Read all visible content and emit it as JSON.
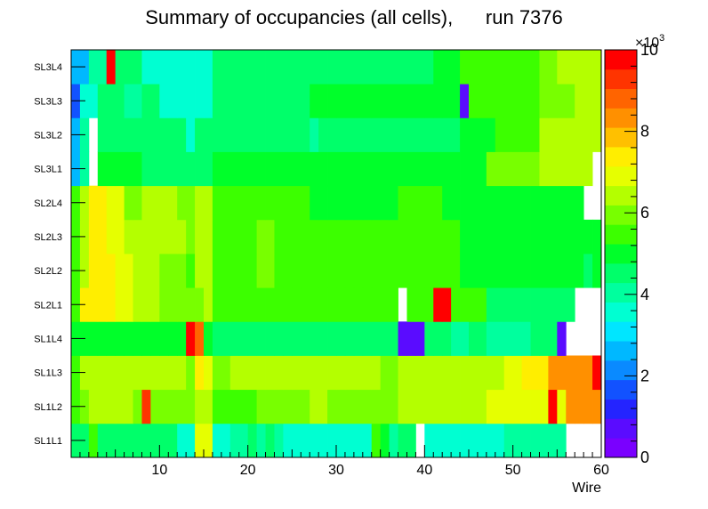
{
  "chart_data": {
    "type": "heatmap",
    "title": "Summary of occupancies (all cells),      run 7376",
    "xlabel": "Wire",
    "ylabel": "",
    "xlim": [
      0,
      60
    ],
    "x_ticks": [
      10,
      20,
      30,
      40,
      50,
      60
    ],
    "rows": [
      "SL1L1",
      "SL1L2",
      "SL1L3",
      "SL1L4",
      "SL2L1",
      "SL2L2",
      "SL2L3",
      "SL2L4",
      "SL3L1",
      "SL3L2",
      "SL3L3",
      "SL3L4"
    ],
    "z_range": [
      0,
      10000
    ],
    "z_ticks": [
      0,
      2,
      4,
      6,
      8,
      10
    ],
    "z_exponent_base": "×10",
    "z_exponent_power": "3",
    "palette": [
      "#7a00ff",
      "#5a0cff",
      "#2424ff",
      "#1252ff",
      "#0a8aff",
      "#00b8ff",
      "#00e6ff",
      "#00ffd2",
      "#00ff9e",
      "#00ff6a",
      "#00ff2a",
      "#3cff00",
      "#78ff00",
      "#b4ff00",
      "#e6ff00",
      "#ffee00",
      "#ffc000",
      "#ff9000",
      "#ff6400",
      "#ff3400",
      "#ff0000"
    ],
    "values": [
      [
        4500,
        4500,
        5400,
        4500,
        4400,
        4400,
        4400,
        4400,
        4300,
        4300,
        4300,
        4300,
        3800,
        3700,
        6800,
        6800,
        3600,
        3600,
        3900,
        4200,
        4300,
        4000,
        4300,
        3900,
        3500,
        3500,
        3500,
        3500,
        3500,
        3500,
        3500,
        3500,
        3500,
        3500,
        5400,
        5200,
        4100,
        4400,
        4400,
        0,
        3500,
        3500,
        3500,
        3500,
        3500,
        3500,
        3500,
        3500,
        3500,
        4200,
        4200,
        4200,
        4200,
        4200,
        4200,
        4200,
        0,
        0,
        0,
        0
      ],
      [
        5400,
        5800,
        6400,
        6200,
        6200,
        6200,
        6200,
        6000,
        9100,
        6000,
        6000,
        6000,
        6000,
        6000,
        6600,
        6600,
        5600,
        5600,
        5600,
        5600,
        5600,
        5800,
        5800,
        5800,
        5800,
        5800,
        5800,
        6200,
        6400,
        5800,
        5800,
        5800,
        5800,
        5800,
        5800,
        5800,
        5800,
        6400,
        6400,
        6400,
        6400,
        6400,
        6400,
        6400,
        6400,
        6400,
        6400,
        6800,
        6800,
        6800,
        6800,
        6800,
        6800,
        6800,
        10000,
        6800,
        8400,
        8400,
        8400,
        8400
      ],
      [
        5600,
        6400,
        6400,
        6400,
        6400,
        6400,
        6400,
        6400,
        6400,
        6400,
        6400,
        6400,
        6400,
        6000,
        7200,
        6800,
        6000,
        6000,
        6200,
        6200,
        6200,
        6200,
        6200,
        6200,
        6200,
        6200,
        6200,
        6300,
        6500,
        6300,
        6300,
        6300,
        6300,
        6300,
        6300,
        5800,
        5800,
        6500,
        6500,
        6500,
        6500,
        6500,
        6500,
        6500,
        6500,
        6500,
        6500,
        6500,
        6500,
        7000,
        7000,
        7500,
        7500,
        7500,
        8400,
        8400,
        8400,
        8400,
        8400,
        9600
      ],
      [
        4800,
        4800,
        5200,
        5200,
        5200,
        5000,
        5000,
        5000,
        5000,
        5000,
        5000,
        5000,
        5000,
        9800,
        9000,
        5000,
        4700,
        4700,
        4700,
        4700,
        4700,
        4700,
        4700,
        4700,
        4700,
        4700,
        4700,
        4300,
        4300,
        4300,
        4300,
        4700,
        4700,
        4500,
        4300,
        4500,
        4500,
        700,
        700,
        800,
        4500,
        4500,
        4500,
        4000,
        4000,
        4500,
        4500,
        4000,
        4000,
        4000,
        4000,
        4000,
        4500,
        4500,
        4500,
        800,
        0,
        0,
        0,
        0
      ],
      [
        5500,
        7600,
        7600,
        7600,
        7600,
        6800,
        6800,
        6400,
        6600,
        6600,
        6000,
        6000,
        6000,
        6000,
        6000,
        6200,
        5400,
        5400,
        5400,
        5400,
        5400,
        5500,
        5500,
        5500,
        5500,
        5500,
        5500,
        5400,
        5400,
        5400,
        5400,
        5400,
        5400,
        5400,
        5600,
        5400,
        5400,
        0,
        5500,
        5500,
        5400,
        10000,
        10000,
        5500,
        5500,
        5500,
        5500,
        4700,
        4700,
        4700,
        4700,
        4700,
        4700,
        4700,
        4700,
        4700,
        4400,
        0,
        0,
        0
      ],
      [
        5500,
        6500,
        7200,
        7200,
        7200,
        6800,
        6800,
        6400,
        6600,
        6600,
        5900,
        5900,
        5900,
        5500,
        6600,
        6600,
        5500,
        5500,
        5500,
        5500,
        5500,
        5800,
        5800,
        5500,
        5500,
        5500,
        5500,
        5300,
        5300,
        5300,
        5300,
        5300,
        5300,
        5300,
        5300,
        5300,
        5300,
        5300,
        5300,
        5300,
        5300,
        5300,
        5300,
        5300,
        5000,
        5000,
        5000,
        5000,
        5000,
        5000,
        5000,
        5000,
        5000,
        5200,
        5200,
        5200,
        5200,
        5200,
        4500,
        5200
      ],
      [
        5500,
        6400,
        7400,
        7400,
        6800,
        6800,
        6200,
        6200,
        6600,
        6600,
        6200,
        6200,
        6200,
        6000,
        6600,
        6600,
        5500,
        5500,
        5500,
        5500,
        5500,
        5800,
        5800,
        5500,
        5500,
        5500,
        5500,
        5300,
        5300,
        5300,
        5300,
        5300,
        5300,
        5300,
        5300,
        5300,
        5300,
        5400,
        5400,
        5400,
        5400,
        5400,
        5400,
        5400,
        5000,
        5000,
        5000,
        5000,
        5000,
        5000,
        5000,
        5000,
        5000,
        4800,
        4800,
        4800,
        4800,
        4800,
        4800,
        4800
      ],
      [
        5600,
        6400,
        7200,
        7200,
        6800,
        6800,
        6000,
        6000,
        6600,
        6600,
        6400,
        6400,
        6000,
        5800,
        6200,
        6200,
        5500,
        5500,
        5500,
        5500,
        5500,
        5500,
        5500,
        5500,
        5500,
        5500,
        5500,
        5200,
        5200,
        5200,
        5200,
        5200,
        5200,
        5200,
        5200,
        5200,
        5200,
        5400,
        5400,
        5400,
        5400,
        5400,
        5000,
        5000,
        5000,
        5000,
        5000,
        5000,
        5000,
        4800,
        4800,
        4800,
        4800,
        4800,
        4800,
        4800,
        4800,
        5200,
        0,
        0
      ],
      [
        2600,
        4000,
        0,
        5000,
        5000,
        5000,
        5000,
        5000,
        4500,
        4500,
        4500,
        4500,
        4500,
        4500,
        4500,
        4500,
        5000,
        5000,
        5000,
        5000,
        5000,
        5000,
        5000,
        5000,
        5000,
        5000,
        5000,
        4800,
        4800,
        4800,
        4800,
        4800,
        5200,
        5200,
        5200,
        5200,
        5200,
        5200,
        5200,
        5200,
        5200,
        5200,
        5200,
        5200,
        5200,
        5200,
        5200,
        5800,
        5800,
        5800,
        5800,
        5800,
        5800,
        6400,
        6400,
        6400,
        6400,
        6400,
        6400,
        0
      ],
      [
        2600,
        4000,
        0,
        4300,
        4300,
        4500,
        4500,
        4500,
        4300,
        4300,
        4300,
        4300,
        4300,
        3800,
        4300,
        4300,
        4300,
        4300,
        4500,
        4500,
        4500,
        4500,
        4500,
        4500,
        4500,
        4500,
        4500,
        4000,
        4300,
        4300,
        4300,
        4300,
        4300,
        4300,
        4300,
        4300,
        4300,
        4300,
        4300,
        4300,
        4300,
        4300,
        4300,
        4300,
        5200,
        4800,
        5200,
        5200,
        5500,
        5500,
        5500,
        5500,
        5500,
        6200,
        6200,
        6200,
        6200,
        6400,
        6400,
        6400
      ],
      [
        1500,
        3800,
        3800,
        4300,
        4300,
        4300,
        4200,
        4200,
        4300,
        4300,
        3800,
        3800,
        3800,
        3800,
        3800,
        3800,
        4300,
        4300,
        4300,
        4300,
        4300,
        4300,
        4300,
        4300,
        4300,
        4300,
        4300,
        4800,
        4800,
        4800,
        4800,
        4800,
        4800,
        4800,
        4800,
        4800,
        4800,
        4800,
        4800,
        4800,
        4800,
        4800,
        4800,
        4800,
        800,
        5500,
        5500,
        5500,
        5500,
        5500,
        5500,
        5500,
        5500,
        5800,
        5800,
        5800,
        5800,
        6400,
        6400,
        6400
      ],
      [
        2600,
        2600,
        4000,
        4000,
        10000,
        4300,
        4300,
        4300,
        3800,
        3800,
        3800,
        3800,
        3800,
        3800,
        3800,
        3800,
        4300,
        4300,
        4300,
        4300,
        4300,
        4300,
        4300,
        4300,
        4300,
        4300,
        4500,
        4500,
        4500,
        4500,
        4500,
        4500,
        4500,
        4500,
        4500,
        4500,
        4500,
        4500,
        4500,
        4500,
        4500,
        5200,
        5200,
        5200,
        5500,
        5500,
        5500,
        5500,
        5500,
        5500,
        5500,
        5500,
        5500,
        5800,
        5800,
        6200,
        6200,
        6200,
        6200,
        6200
      ]
    ]
  }
}
